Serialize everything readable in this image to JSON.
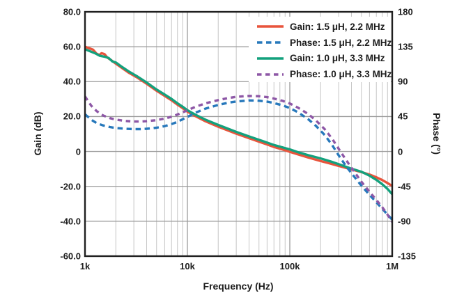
{
  "figure": {
    "background": "#ffffff",
    "text_color": "#1d1d1d"
  },
  "chart_data": {
    "type": "line",
    "title": "",
    "x_axis": {
      "label": "Frequency (Hz)",
      "scale": "log",
      "range": [
        1000,
        1000000
      ],
      "ticks": [
        {
          "label": "1k",
          "value": 1000
        },
        {
          "label": "10k",
          "value": 10000
        },
        {
          "label": "100k",
          "value": 100000
        },
        {
          "label": "1M",
          "value": 1000000
        }
      ]
    },
    "left_axis": {
      "label": "Gain (dB)",
      "range": [
        -60,
        80
      ],
      "ticks": [
        {
          "label": "80.0",
          "value": 80
        },
        {
          "label": "60.0",
          "value": 60
        },
        {
          "label": "40.0",
          "value": 40
        },
        {
          "label": "20.0",
          "value": 20
        },
        {
          "label": "0",
          "value": 0
        },
        {
          "label": "-20.0",
          "value": -20
        },
        {
          "label": "-40.0",
          "value": -40
        },
        {
          "label": "-60.0",
          "value": -60
        }
      ]
    },
    "right_axis": {
      "label": "Phase (°)",
      "range": [
        -135,
        180
      ],
      "ticks": [
        {
          "label": "180",
          "value": 180
        },
        {
          "label": "135",
          "value": 135
        },
        {
          "label": "90",
          "value": 90
        },
        {
          "label": "45",
          "value": 45
        },
        {
          "label": "0",
          "value": 0
        },
        {
          "label": "-45",
          "value": -45
        },
        {
          "label": "-90",
          "value": -90
        },
        {
          "label": "-135",
          "value": -135
        }
      ]
    },
    "grid": {
      "horizontal_major_values": [
        60,
        40,
        20,
        0,
        -20,
        -40
      ],
      "vertical_major_values": [
        10000,
        100000
      ],
      "vertical_minor_multipliers": [
        2,
        3,
        4,
        5,
        6,
        7,
        8,
        9
      ],
      "grid_major_color": "#9a9a9a",
      "grid_minor_color": "#c6c6c6",
      "axis_border_color": "#1f1f1f"
    },
    "legend_position": "top-right",
    "series": [
      {
        "name": "Gain: 1.5 μH, 2.2 MHz",
        "axis": "gain",
        "line_style": "solid",
        "color": "#e8543c",
        "points": [
          [
            1000,
            60.0
          ],
          [
            1080,
            59.3
          ],
          [
            1200,
            58.3
          ],
          [
            1300,
            56.0
          ],
          [
            1380,
            55.3
          ],
          [
            1450,
            56.3
          ],
          [
            1550,
            55.8
          ],
          [
            1650,
            53.8
          ],
          [
            1800,
            52.3
          ],
          [
            2000,
            50.3
          ],
          [
            2300,
            47.8
          ],
          [
            2700,
            45.0
          ],
          [
            3200,
            42.5
          ],
          [
            4000,
            38.8
          ],
          [
            5000,
            34.8
          ],
          [
            6000,
            31.8
          ],
          [
            7000,
            29.3
          ],
          [
            8000,
            26.8
          ],
          [
            9000,
            24.8
          ],
          [
            10000,
            22.8
          ],
          [
            12000,
            20.2
          ],
          [
            15000,
            17.3
          ],
          [
            20000,
            14.2
          ],
          [
            25000,
            12.0
          ],
          [
            30000,
            10.2
          ],
          [
            40000,
            7.6
          ],
          [
            50000,
            5.6
          ],
          [
            60000,
            4.0
          ],
          [
            70000,
            2.6
          ],
          [
            85000,
            1.1
          ],
          [
            100000,
            -0.2
          ],
          [
            120000,
            -1.7
          ],
          [
            150000,
            -3.4
          ],
          [
            200000,
            -5.5
          ],
          [
            250000,
            -7.0
          ],
          [
            300000,
            -8.3
          ],
          [
            400000,
            -10.3
          ],
          [
            500000,
            -11.8
          ],
          [
            600000,
            -13.2
          ],
          [
            700000,
            -14.8
          ],
          [
            800000,
            -16.4
          ],
          [
            900000,
            -18.1
          ],
          [
            1000000,
            -19.8
          ]
        ]
      },
      {
        "name": "Phase: 1.5 μH, 2.2 MHz",
        "axis": "phase",
        "line_style": "dashed",
        "color": "#2778bb",
        "points": [
          [
            1000,
            48.0
          ],
          [
            1150,
            41.0
          ],
          [
            1300,
            36.5
          ],
          [
            1500,
            33.5
          ],
          [
            1750,
            31.5
          ],
          [
            2000,
            30.2
          ],
          [
            2500,
            29.2
          ],
          [
            3000,
            28.8
          ],
          [
            3500,
            28.8
          ],
          [
            4000,
            29.2
          ],
          [
            5000,
            30.6
          ],
          [
            6000,
            32.6
          ],
          [
            7000,
            35.2
          ],
          [
            8000,
            38.2
          ],
          [
            9000,
            41.5
          ],
          [
            10000,
            44.5
          ],
          [
            12000,
            50.0
          ],
          [
            15000,
            55.2
          ],
          [
            20000,
            60.0
          ],
          [
            25000,
            62.8
          ],
          [
            30000,
            64.4
          ],
          [
            40000,
            65.8
          ],
          [
            50000,
            65.4
          ],
          [
            60000,
            64.2
          ],
          [
            70000,
            62.4
          ],
          [
            85000,
            59.4
          ],
          [
            100000,
            56.0
          ],
          [
            120000,
            50.5
          ],
          [
            150000,
            42.0
          ],
          [
            180000,
            33.0
          ],
          [
            220000,
            21.0
          ],
          [
            260000,
            8.0
          ],
          [
            300000,
            -5.0
          ],
          [
            350000,
            -18.0
          ],
          [
            400000,
            -28.0
          ],
          [
            450000,
            -36.5
          ],
          [
            500000,
            -44.0
          ],
          [
            600000,
            -56.0
          ],
          [
            700000,
            -65.5
          ],
          [
            800000,
            -74.0
          ],
          [
            900000,
            -81.5
          ],
          [
            1000000,
            -88.0
          ]
        ]
      },
      {
        "name": "Gain: 1.0 μH, 3.3 MHz",
        "axis": "gain",
        "line_style": "solid",
        "color": "#13a17d",
        "points": [
          [
            1000,
            58.6
          ],
          [
            1100,
            57.6
          ],
          [
            1250,
            56.3
          ],
          [
            1400,
            54.8
          ],
          [
            1550,
            54.3
          ],
          [
            1700,
            53.6
          ],
          [
            1850,
            51.6
          ],
          [
            2000,
            51.0
          ],
          [
            2300,
            48.4
          ],
          [
            2700,
            45.7
          ],
          [
            3200,
            43.2
          ],
          [
            4000,
            39.5
          ],
          [
            5000,
            35.5
          ],
          [
            6000,
            32.6
          ],
          [
            7000,
            30.1
          ],
          [
            8000,
            27.6
          ],
          [
            9000,
            25.6
          ],
          [
            10000,
            23.6
          ],
          [
            12000,
            21.0
          ],
          [
            15000,
            18.2
          ],
          [
            20000,
            15.2
          ],
          [
            25000,
            13.0
          ],
          [
            30000,
            11.2
          ],
          [
            40000,
            8.6
          ],
          [
            50000,
            6.7
          ],
          [
            60000,
            5.1
          ],
          [
            70000,
            3.7
          ],
          [
            85000,
            2.3
          ],
          [
            100000,
            1.2
          ],
          [
            120000,
            -0.4
          ],
          [
            150000,
            -2.1
          ],
          [
            200000,
            -4.0
          ],
          [
            250000,
            -5.7
          ],
          [
            300000,
            -7.3
          ],
          [
            400000,
            -9.9
          ],
          [
            500000,
            -11.6
          ],
          [
            600000,
            -13.9
          ],
          [
            700000,
            -16.3
          ],
          [
            800000,
            -18.8
          ],
          [
            900000,
            -21.5
          ],
          [
            1000000,
            -24.5
          ]
        ]
      },
      {
        "name": "Phase: 1.0 μH, 3.3 MHz",
        "axis": "phase",
        "line_style": "dashed",
        "color": "#8d57a6",
        "points": [
          [
            1000,
            71.0
          ],
          [
            1150,
            59.0
          ],
          [
            1300,
            52.0
          ],
          [
            1500,
            46.5
          ],
          [
            1750,
            43.0
          ],
          [
            2000,
            41.0
          ],
          [
            2500,
            39.3
          ],
          [
            3000,
            38.6
          ],
          [
            3500,
            38.6
          ],
          [
            4000,
            39.0
          ],
          [
            5000,
            40.4
          ],
          [
            6000,
            42.4
          ],
          [
            7000,
            44.8
          ],
          [
            8000,
            47.6
          ],
          [
            9000,
            50.4
          ],
          [
            10000,
            53.0
          ],
          [
            12000,
            57.6
          ],
          [
            15000,
            62.0
          ],
          [
            20000,
            66.2
          ],
          [
            25000,
            68.8
          ],
          [
            30000,
            70.4
          ],
          [
            40000,
            71.6
          ],
          [
            50000,
            71.2
          ],
          [
            60000,
            70.0
          ],
          [
            70000,
            68.2
          ],
          [
            85000,
            65.2
          ],
          [
            100000,
            61.8
          ],
          [
            120000,
            56.5
          ],
          [
            150000,
            48.5
          ],
          [
            180000,
            40.0
          ],
          [
            220000,
            28.5
          ],
          [
            260000,
            16.0
          ],
          [
            300000,
            3.5
          ],
          [
            350000,
            -10.0
          ],
          [
            400000,
            -21.0
          ],
          [
            450000,
            -30.5
          ],
          [
            500000,
            -39.0
          ],
          [
            600000,
            -52.0
          ],
          [
            700000,
            -62.5
          ],
          [
            800000,
            -72.0
          ],
          [
            900000,
            -81.5
          ],
          [
            1000000,
            -91.0
          ]
        ]
      }
    ]
  }
}
